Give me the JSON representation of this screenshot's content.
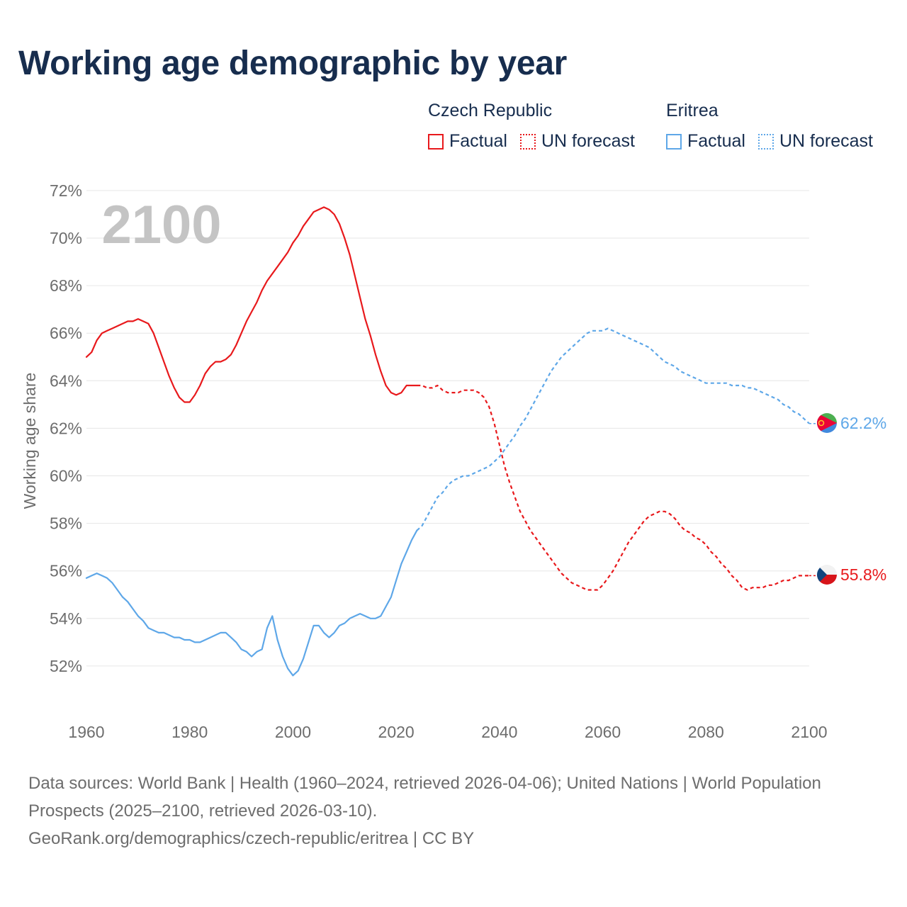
{
  "title": "Working age demographic by year",
  "legend": {
    "groups": [
      {
        "country": "Czech Republic",
        "factual_label": "Factual",
        "forecast_label": "UN forecast",
        "color": "#e8191c"
      },
      {
        "country": "Eritrea",
        "factual_label": "Factual",
        "forecast_label": "UN forecast",
        "color": "#5ea7e8"
      }
    ]
  },
  "footer": {
    "sources": "Data sources: World Bank | Health (1960–2024, retrieved 2026-04-06); United Nations | World Population Prospects (2025–2100, retrieved 2026-03-10).",
    "url": "GeoRank.org/demographics/czech-republic/eritrea | CC BY"
  },
  "chart_data": {
    "type": "line",
    "title": "Working age demographic by year",
    "year_watermark": "2100",
    "xlabel": "",
    "ylabel": "Working age share",
    "xlim": [
      1960,
      2100
    ],
    "ylim": [
      50,
      72
    ],
    "x_ticks": [
      1960,
      1980,
      2000,
      2020,
      2040,
      2060,
      2080,
      2100
    ],
    "y_ticks": [
      52,
      54,
      56,
      58,
      60,
      62,
      64,
      66,
      68,
      70,
      72
    ],
    "y_tick_labels": [
      "52%",
      "54%",
      "56%",
      "58%",
      "60%",
      "62%",
      "64%",
      "66%",
      "68%",
      "70%",
      "72%"
    ],
    "x_tick_labels": [
      "1960",
      "1980",
      "2000",
      "2020",
      "2040",
      "2060",
      "2080",
      "2100"
    ],
    "grid": true,
    "legend_position": "top-right",
    "series": [
      {
        "name": "Czech Republic",
        "color": "#e8191c",
        "end_label": "55.8%",
        "factual": [
          [
            1960,
            65.0
          ],
          [
            1961,
            65.2
          ],
          [
            1962,
            65.7
          ],
          [
            1963,
            66.0
          ],
          [
            1964,
            66.1
          ],
          [
            1965,
            66.2
          ],
          [
            1966,
            66.3
          ],
          [
            1967,
            66.4
          ],
          [
            1968,
            66.5
          ],
          [
            1969,
            66.5
          ],
          [
            1970,
            66.6
          ],
          [
            1971,
            66.5
          ],
          [
            1972,
            66.4
          ],
          [
            1973,
            66.0
          ],
          [
            1974,
            65.4
          ],
          [
            1975,
            64.8
          ],
          [
            1976,
            64.2
          ],
          [
            1977,
            63.7
          ],
          [
            1978,
            63.3
          ],
          [
            1979,
            63.1
          ],
          [
            1980,
            63.1
          ],
          [
            1981,
            63.4
          ],
          [
            1982,
            63.8
          ],
          [
            1983,
            64.3
          ],
          [
            1984,
            64.6
          ],
          [
            1985,
            64.8
          ],
          [
            1986,
            64.8
          ],
          [
            1987,
            64.9
          ],
          [
            1988,
            65.1
          ],
          [
            1989,
            65.5
          ],
          [
            1990,
            66.0
          ],
          [
            1991,
            66.5
          ],
          [
            1992,
            66.9
          ],
          [
            1993,
            67.3
          ],
          [
            1994,
            67.8
          ],
          [
            1995,
            68.2
          ],
          [
            1996,
            68.5
          ],
          [
            1997,
            68.8
          ],
          [
            1998,
            69.1
          ],
          [
            1999,
            69.4
          ],
          [
            2000,
            69.8
          ],
          [
            2001,
            70.1
          ],
          [
            2002,
            70.5
          ],
          [
            2003,
            70.8
          ],
          [
            2004,
            71.1
          ],
          [
            2005,
            71.2
          ],
          [
            2006,
            71.3
          ],
          [
            2007,
            71.2
          ],
          [
            2008,
            71.0
          ],
          [
            2009,
            70.6
          ],
          [
            2010,
            70.0
          ],
          [
            2011,
            69.3
          ],
          [
            2012,
            68.4
          ],
          [
            2013,
            67.5
          ],
          [
            2014,
            66.6
          ],
          [
            2015,
            65.9
          ],
          [
            2016,
            65.1
          ],
          [
            2017,
            64.4
          ],
          [
            2018,
            63.8
          ],
          [
            2019,
            63.5
          ],
          [
            2020,
            63.4
          ],
          [
            2021,
            63.5
          ],
          [
            2022,
            63.8
          ],
          [
            2023,
            63.8
          ],
          [
            2024,
            63.8
          ]
        ],
        "forecast": [
          [
            2024,
            63.8
          ],
          [
            2025,
            63.8
          ],
          [
            2026,
            63.7
          ],
          [
            2027,
            63.7
          ],
          [
            2028,
            63.8
          ],
          [
            2029,
            63.6
          ],
          [
            2030,
            63.5
          ],
          [
            2031,
            63.5
          ],
          [
            2032,
            63.5
          ],
          [
            2033,
            63.6
          ],
          [
            2034,
            63.6
          ],
          [
            2035,
            63.6
          ],
          [
            2036,
            63.5
          ],
          [
            2037,
            63.3
          ],
          [
            2038,
            62.9
          ],
          [
            2039,
            62.2
          ],
          [
            2040,
            61.3
          ],
          [
            2041,
            60.4
          ],
          [
            2042,
            59.7
          ],
          [
            2043,
            59.1
          ],
          [
            2044,
            58.5
          ],
          [
            2045,
            58.1
          ],
          [
            2046,
            57.7
          ],
          [
            2047,
            57.4
          ],
          [
            2048,
            57.1
          ],
          [
            2049,
            56.8
          ],
          [
            2050,
            56.5
          ],
          [
            2051,
            56.2
          ],
          [
            2052,
            55.9
          ],
          [
            2053,
            55.7
          ],
          [
            2054,
            55.5
          ],
          [
            2055,
            55.4
          ],
          [
            2056,
            55.3
          ],
          [
            2057,
            55.2
          ],
          [
            2058,
            55.2
          ],
          [
            2059,
            55.2
          ],
          [
            2060,
            55.4
          ],
          [
            2061,
            55.7
          ],
          [
            2062,
            56.0
          ],
          [
            2063,
            56.4
          ],
          [
            2064,
            56.8
          ],
          [
            2065,
            57.2
          ],
          [
            2066,
            57.5
          ],
          [
            2067,
            57.8
          ],
          [
            2068,
            58.1
          ],
          [
            2069,
            58.3
          ],
          [
            2070,
            58.4
          ],
          [
            2071,
            58.5
          ],
          [
            2072,
            58.5
          ],
          [
            2073,
            58.4
          ],
          [
            2074,
            58.2
          ],
          [
            2075,
            57.9
          ],
          [
            2076,
            57.7
          ],
          [
            2077,
            57.6
          ],
          [
            2078,
            57.4
          ],
          [
            2079,
            57.3
          ],
          [
            2080,
            57.1
          ],
          [
            2081,
            56.8
          ],
          [
            2082,
            56.6
          ],
          [
            2083,
            56.3
          ],
          [
            2084,
            56.1
          ],
          [
            2085,
            55.8
          ],
          [
            2086,
            55.6
          ],
          [
            2087,
            55.3
          ],
          [
            2088,
            55.2
          ],
          [
            2089,
            55.3
          ],
          [
            2090,
            55.3
          ],
          [
            2091,
            55.3
          ],
          [
            2092,
            55.4
          ],
          [
            2093,
            55.4
          ],
          [
            2094,
            55.5
          ],
          [
            2095,
            55.6
          ],
          [
            2096,
            55.6
          ],
          [
            2097,
            55.7
          ],
          [
            2098,
            55.8
          ],
          [
            2099,
            55.8
          ],
          [
            2100,
            55.8
          ]
        ]
      },
      {
        "name": "Eritrea",
        "color": "#5ea7e8",
        "end_label": "62.2%",
        "factual": [
          [
            1960,
            55.7
          ],
          [
            1961,
            55.8
          ],
          [
            1962,
            55.9
          ],
          [
            1963,
            55.8
          ],
          [
            1964,
            55.7
          ],
          [
            1965,
            55.5
          ],
          [
            1966,
            55.2
          ],
          [
            1967,
            54.9
          ],
          [
            1968,
            54.7
          ],
          [
            1969,
            54.4
          ],
          [
            1970,
            54.1
          ],
          [
            1971,
            53.9
          ],
          [
            1972,
            53.6
          ],
          [
            1973,
            53.5
          ],
          [
            1974,
            53.4
          ],
          [
            1975,
            53.4
          ],
          [
            1976,
            53.3
          ],
          [
            1977,
            53.2
          ],
          [
            1978,
            53.2
          ],
          [
            1979,
            53.1
          ],
          [
            1980,
            53.1
          ],
          [
            1981,
            53.0
          ],
          [
            1982,
            53.0
          ],
          [
            1983,
            53.1
          ],
          [
            1984,
            53.2
          ],
          [
            1985,
            53.3
          ],
          [
            1986,
            53.4
          ],
          [
            1987,
            53.4
          ],
          [
            1988,
            53.2
          ],
          [
            1989,
            53.0
          ],
          [
            1990,
            52.7
          ],
          [
            1991,
            52.6
          ],
          [
            1992,
            52.4
          ],
          [
            1993,
            52.6
          ],
          [
            1994,
            52.7
          ],
          [
            1995,
            53.6
          ],
          [
            1996,
            54.1
          ],
          [
            1997,
            53.1
          ],
          [
            1998,
            52.4
          ],
          [
            1999,
            51.9
          ],
          [
            2000,
            51.6
          ],
          [
            2001,
            51.8
          ],
          [
            2002,
            52.3
          ],
          [
            2003,
            53.0
          ],
          [
            2004,
            53.7
          ],
          [
            2005,
            53.7
          ],
          [
            2006,
            53.4
          ],
          [
            2007,
            53.2
          ],
          [
            2008,
            53.4
          ],
          [
            2009,
            53.7
          ],
          [
            2010,
            53.8
          ],
          [
            2011,
            54.0
          ],
          [
            2012,
            54.1
          ],
          [
            2013,
            54.2
          ],
          [
            2014,
            54.1
          ],
          [
            2015,
            54.0
          ],
          [
            2016,
            54.0
          ],
          [
            2017,
            54.1
          ],
          [
            2018,
            54.5
          ],
          [
            2019,
            54.9
          ],
          [
            2020,
            55.6
          ],
          [
            2021,
            56.3
          ],
          [
            2022,
            56.8
          ],
          [
            2023,
            57.3
          ],
          [
            2024,
            57.7
          ]
        ],
        "forecast": [
          [
            2024,
            57.7
          ],
          [
            2025,
            57.9
          ],
          [
            2026,
            58.3
          ],
          [
            2027,
            58.7
          ],
          [
            2028,
            59.1
          ],
          [
            2029,
            59.3
          ],
          [
            2030,
            59.6
          ],
          [
            2031,
            59.8
          ],
          [
            2032,
            59.9
          ],
          [
            2033,
            60.0
          ],
          [
            2034,
            60.0
          ],
          [
            2035,
            60.1
          ],
          [
            2036,
            60.2
          ],
          [
            2037,
            60.3
          ],
          [
            2038,
            60.4
          ],
          [
            2039,
            60.6
          ],
          [
            2040,
            60.8
          ],
          [
            2041,
            61.1
          ],
          [
            2042,
            61.4
          ],
          [
            2043,
            61.7
          ],
          [
            2044,
            62.1
          ],
          [
            2045,
            62.4
          ],
          [
            2046,
            62.8
          ],
          [
            2047,
            63.2
          ],
          [
            2048,
            63.6
          ],
          [
            2049,
            64.0
          ],
          [
            2050,
            64.4
          ],
          [
            2051,
            64.7
          ],
          [
            2052,
            65.0
          ],
          [
            2053,
            65.2
          ],
          [
            2054,
            65.4
          ],
          [
            2055,
            65.6
          ],
          [
            2056,
            65.8
          ],
          [
            2057,
            66.0
          ],
          [
            2058,
            66.1
          ],
          [
            2059,
            66.1
          ],
          [
            2060,
            66.1
          ],
          [
            2061,
            66.2
          ],
          [
            2062,
            66.1
          ],
          [
            2063,
            66.0
          ],
          [
            2064,
            65.9
          ],
          [
            2065,
            65.8
          ],
          [
            2066,
            65.7
          ],
          [
            2067,
            65.6
          ],
          [
            2068,
            65.5
          ],
          [
            2069,
            65.4
          ],
          [
            2070,
            65.2
          ],
          [
            2071,
            65.0
          ],
          [
            2072,
            64.8
          ],
          [
            2073,
            64.7
          ],
          [
            2074,
            64.6
          ],
          [
            2075,
            64.4
          ],
          [
            2076,
            64.3
          ],
          [
            2077,
            64.2
          ],
          [
            2078,
            64.1
          ],
          [
            2079,
            64.0
          ],
          [
            2080,
            63.9
          ],
          [
            2081,
            63.9
          ],
          [
            2082,
            63.9
          ],
          [
            2083,
            63.9
          ],
          [
            2084,
            63.9
          ],
          [
            2085,
            63.8
          ],
          [
            2086,
            63.8
          ],
          [
            2087,
            63.8
          ],
          [
            2088,
            63.7
          ],
          [
            2089,
            63.7
          ],
          [
            2090,
            63.6
          ],
          [
            2091,
            63.5
          ],
          [
            2092,
            63.4
          ],
          [
            2093,
            63.3
          ],
          [
            2094,
            63.2
          ],
          [
            2095,
            63.0
          ],
          [
            2096,
            62.9
          ],
          [
            2097,
            62.7
          ],
          [
            2098,
            62.6
          ],
          [
            2099,
            62.4
          ],
          [
            2100,
            62.2
          ]
        ]
      }
    ]
  }
}
